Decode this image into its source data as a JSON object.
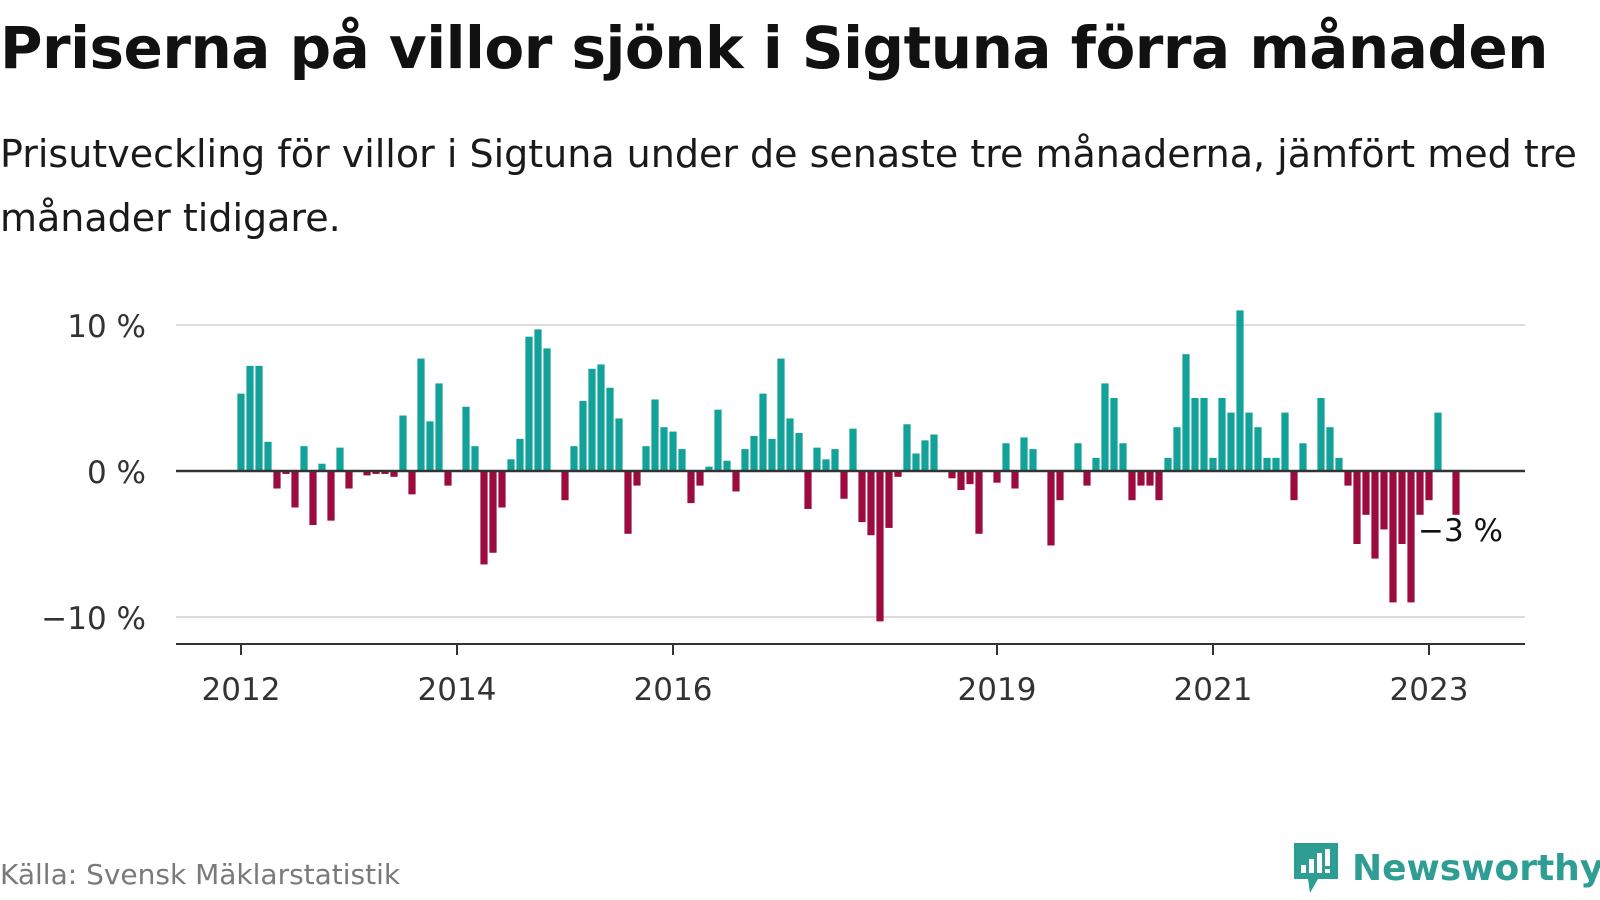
{
  "title": "Priserna på villor sjönk i Sigtuna förra månaden",
  "subtitle": "Prisutveckling för villor i Sigtuna under de senaste tre månaderna, jämfört med tre månader tidigare.",
  "source": "Källa: Svensk Mäklarstatistik",
  "brand": "Newsworthy",
  "colors": {
    "positive": "#12a29a",
    "negative": "#9b0b3e",
    "grid": "#dddddd",
    "axis": "#333333",
    "brand": "#2e9d94"
  },
  "chart_data": {
    "type": "bar",
    "title": "Priserna på villor sjönk i Sigtuna förra månaden",
    "xlabel": "",
    "ylabel": "",
    "ylim": [
      -12,
      11
    ],
    "y_ticks": [
      {
        "value": 10,
        "label": "10 %"
      },
      {
        "value": 0,
        "label": "0 %"
      },
      {
        "value": -10,
        "label": "−10 %"
      }
    ],
    "x_ticks": [
      {
        "index": 0,
        "label": "2012"
      },
      {
        "index": 24,
        "label": "2014"
      },
      {
        "index": 48,
        "label": "2016"
      },
      {
        "index": 84,
        "label": "2019"
      },
      {
        "index": 108,
        "label": "2021"
      },
      {
        "index": 132,
        "label": "2023"
      }
    ],
    "start_period": "2012-01",
    "values": [
      5.3,
      7.2,
      7.2,
      2.0,
      -1.2,
      -0.2,
      -2.5,
      1.7,
      -3.7,
      0.5,
      -3.4,
      1.6,
      -1.2,
      0.0,
      -0.3,
      -0.2,
      -0.2,
      -0.4,
      3.8,
      -1.6,
      7.7,
      3.4,
      6.0,
      -1.0,
      0.0,
      4.4,
      1.7,
      -6.4,
      -5.6,
      -2.5,
      0.8,
      2.2,
      9.2,
      9.7,
      8.4,
      0.0,
      -2.0,
      1.7,
      4.8,
      7.0,
      7.3,
      5.7,
      3.6,
      -4.3,
      -1.0,
      1.7,
      4.9,
      3.0,
      2.7,
      1.5,
      -2.2,
      -1.0,
      0.3,
      4.2,
      0.7,
      -1.4,
      1.5,
      2.4,
      5.3,
      2.2,
      7.7,
      3.6,
      2.6,
      -2.6,
      1.6,
      0.8,
      1.5,
      -1.9,
      2.9,
      -3.5,
      -4.4,
      -10.3,
      -3.9,
      -0.4,
      3.2,
      1.2,
      2.1,
      2.5,
      0.0,
      -0.5,
      -1.3,
      -0.9,
      -4.3,
      0.0,
      -0.8,
      1.9,
      -1.2,
      2.3,
      1.5,
      0.0,
      -5.1,
      -2.0,
      0.0,
      1.9,
      -1.0,
      0.9,
      6.0,
      5.0,
      1.9,
      -2.0,
      -1.0,
      -1.0,
      -2.0,
      0.9,
      3.0,
      8.0,
      5.0,
      5.0,
      0.9,
      5.0,
      4.0,
      11.0,
      4.0,
      3.0,
      0.9,
      0.9,
      4.0,
      -2.0,
      1.9,
      0.0,
      5.0,
      3.0,
      0.9,
      -1.0,
      -5.0,
      -3.0,
      -6.0,
      -4.0,
      -9.0,
      -5.0,
      -9.0,
      -3.0,
      -2.0,
      4.0,
      0.0,
      -3.0
    ],
    "annotation": {
      "index": 135,
      "label": "−3 %"
    }
  }
}
